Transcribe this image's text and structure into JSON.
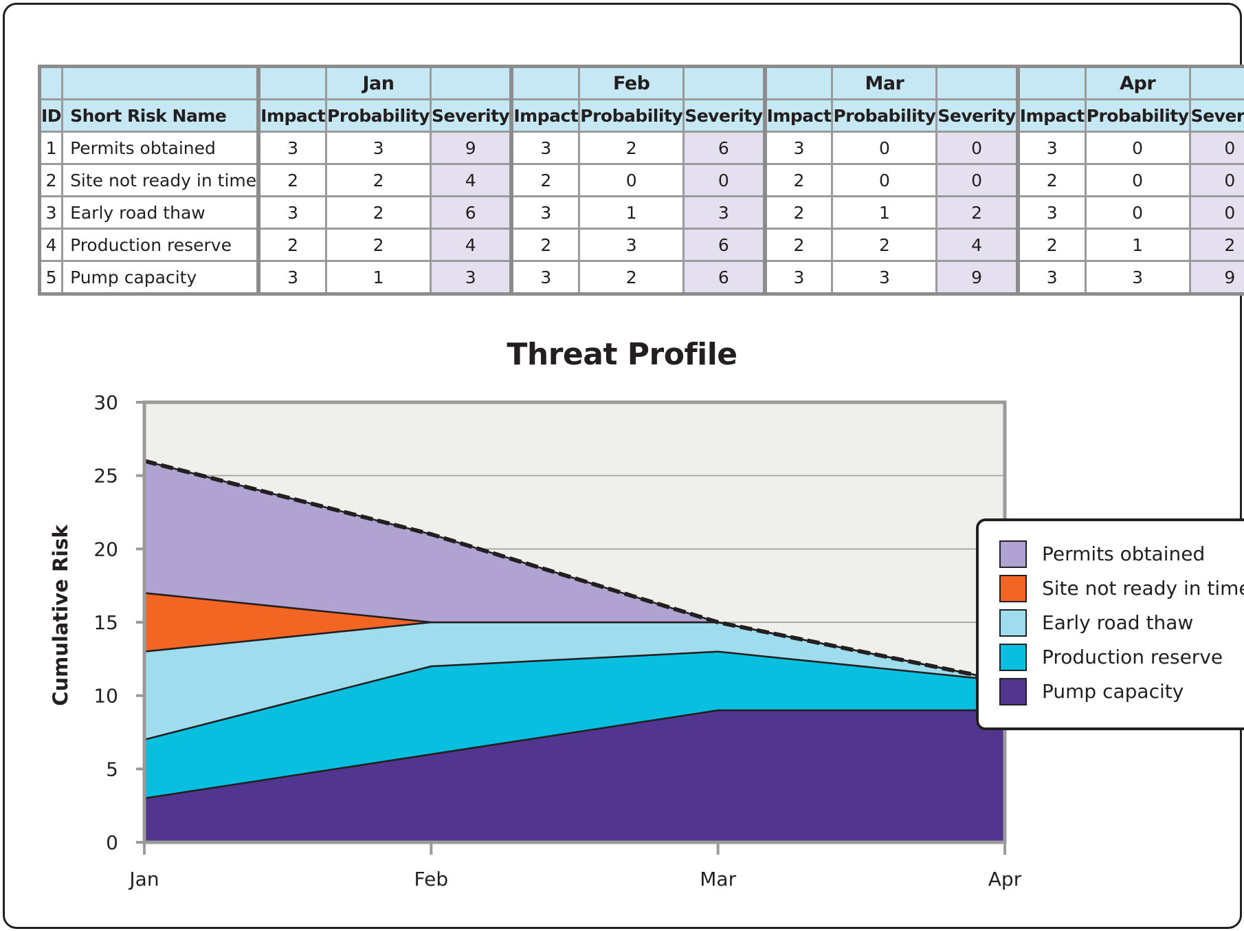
{
  "table": {
    "columns": {
      "id": "ID",
      "name": "Short Risk Name",
      "impact": "Impact",
      "probability": "Probability",
      "severity": "Severity"
    },
    "months": [
      "Jan",
      "Feb",
      "Mar",
      "Apr"
    ],
    "rows": [
      {
        "id": "1",
        "name": "Permits obtained",
        "cells": [
          "3",
          "3",
          "9",
          "3",
          "2",
          "6",
          "3",
          "0",
          "0",
          "3",
          "0",
          "0"
        ]
      },
      {
        "id": "2",
        "name": "Site not ready in time",
        "cells": [
          "2",
          "2",
          "4",
          "2",
          "0",
          "0",
          "2",
          "0",
          "0",
          "2",
          "0",
          "0"
        ]
      },
      {
        "id": "3",
        "name": "Early road thaw",
        "cells": [
          "3",
          "2",
          "6",
          "3",
          "1",
          "3",
          "2",
          "1",
          "2",
          "3",
          "0",
          "0"
        ]
      },
      {
        "id": "4",
        "name": "Production reserve",
        "cells": [
          "2",
          "2",
          "4",
          "2",
          "3",
          "6",
          "2",
          "2",
          "4",
          "2",
          "1",
          "2"
        ]
      },
      {
        "id": "5",
        "name": "Pump capacity",
        "cells": [
          "3",
          "1",
          "3",
          "3",
          "2",
          "6",
          "3",
          "3",
          "9",
          "3",
          "3",
          "9"
        ]
      }
    ]
  },
  "chart_data": {
    "type": "area",
    "stacked": true,
    "title": "Threat Profile",
    "xlabel": "",
    "ylabel": "Cumulative Risk",
    "categories": [
      "Jan",
      "Feb",
      "Mar",
      "Apr"
    ],
    "ylim": [
      0,
      30
    ],
    "yticks": [
      0,
      5,
      10,
      15,
      20,
      25,
      30
    ],
    "grid": true,
    "legend_position": "right",
    "total_line": {
      "style": "dashed",
      "values": [
        26,
        21,
        15,
        11
      ]
    },
    "series": [
      {
        "name": "Pump capacity",
        "color": "#51358f",
        "values": [
          3,
          6,
          9,
          9
        ]
      },
      {
        "name": "Production reserve",
        "color": "#08bfe0",
        "values": [
          4,
          6,
          4,
          2
        ]
      },
      {
        "name": "Early road thaw",
        "color": "#9fdcee",
        "values": [
          6,
          3,
          2,
          0
        ]
      },
      {
        "name": "Site not ready in time",
        "color": "#f26522",
        "values": [
          4,
          0,
          0,
          0
        ]
      },
      {
        "name": "Permits obtained",
        "color": "#b0a3d1",
        "values": [
          9,
          6,
          0,
          0
        ]
      }
    ],
    "colors": {
      "plot_background": "#efefeb",
      "grid": "#a9a9a9",
      "frame": "#9a9a9a",
      "outline": "#231f20"
    }
  },
  "legend": {
    "items": [
      {
        "label": "Permits obtained",
        "color": "#b0a3d1"
      },
      {
        "label": "Site not ready in time",
        "color": "#f26522"
      },
      {
        "label": "Early road thaw",
        "color": "#9fdcee"
      },
      {
        "label": "Production reserve",
        "color": "#08bfe0"
      },
      {
        "label": "Pump capacity",
        "color": "#51358f"
      }
    ]
  }
}
